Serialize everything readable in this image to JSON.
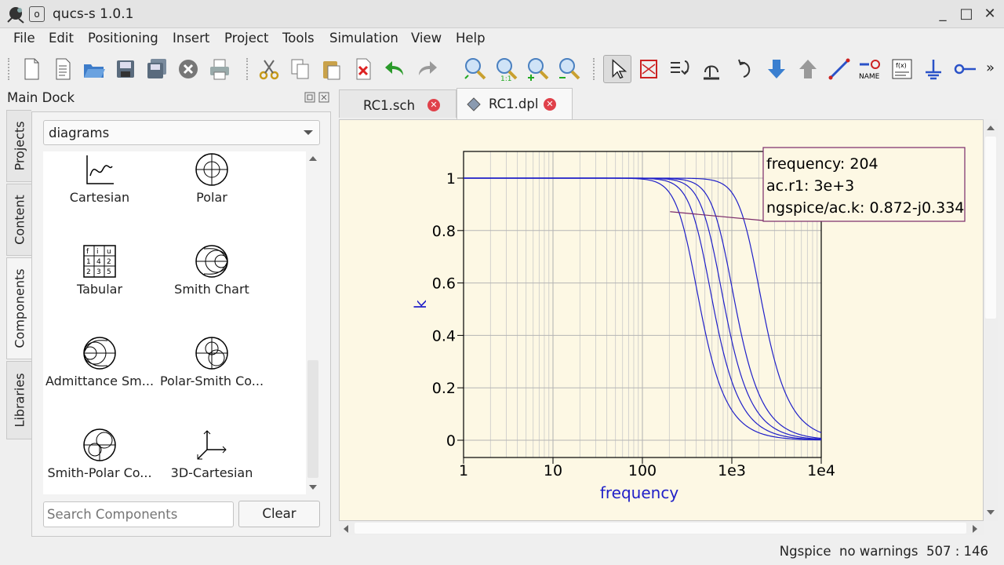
{
  "window": {
    "title": "qucs-s 1.0.1",
    "menu_glyph": "o",
    "minimize": "_",
    "maximize": "□",
    "close": "✕"
  },
  "menu": [
    "File",
    "Edit",
    "Positioning",
    "Insert",
    "Project",
    "Tools",
    "Simulation",
    "View",
    "Help"
  ],
  "toolbar": {
    "icons": [
      "new-file-icon",
      "new-text-icon",
      "open-icon",
      "save-icon",
      "save-all-icon",
      "close-doc-icon",
      "print-icon",
      "cut-icon",
      "copy-icon",
      "paste-icon",
      "delete-icon",
      "undo-icon",
      "redo-icon",
      "zoom-fit-icon",
      "zoom-selection-icon",
      "zoom-in-icon",
      "zoom-out-icon",
      "select-icon",
      "mirror-x-icon",
      "mirror-y-icon",
      "rotate-icon",
      "insert-port-icon",
      "deactivate-icon",
      "go-into-icon",
      "go-up-icon",
      "wire-icon",
      "label-icon",
      "equation-icon",
      "ground-icon",
      "port-icon",
      "more-icon"
    ],
    "label_text": "NAME",
    "equation_text": "f(x)",
    "overflow": "»"
  },
  "dock": {
    "title": "Main Dock",
    "tabs": [
      "Projects",
      "Content",
      "Components",
      "Libraries"
    ],
    "active_tab": "Components",
    "combo_value": "diagrams",
    "components": [
      "Cartesian",
      "Polar",
      "Tabular",
      "Smith Chart",
      "Admittance Sm...",
      "Polar-Smith Co...",
      "Smith-Polar Co...",
      "3D-Cartesian"
    ],
    "search_placeholder": "Search Components",
    "clear_label": "Clear"
  },
  "tabs": [
    {
      "label": "RC1.sch",
      "active": false
    },
    {
      "label": "RC1.dpl",
      "active": true
    }
  ],
  "chart_data": {
    "type": "line",
    "xscale": "log",
    "xlim": [
      1,
      10000
    ],
    "ylim": [
      0,
      1
    ],
    "xticks": [
      "1",
      "10",
      "100",
      "1e3",
      "1e4"
    ],
    "yticks": [
      "0",
      "0.2",
      "0.4",
      "0.6",
      "0.8",
      "1"
    ],
    "xlabel": "frequency",
    "ylabel": "k",
    "series_color": "#2020c8",
    "series_cutoffs": [
      340,
      480,
      640,
      850,
      1700
    ],
    "marker": {
      "lines": [
        "frequency: 204",
        "ac.r1: 3e+3",
        "ngspice/ac.k: 0.872-j0.334"
      ],
      "x": 204,
      "y": 0.872
    }
  },
  "status": {
    "simulator": "Ngspice",
    "warnings": "no warnings",
    "coords": "507 : 146"
  }
}
